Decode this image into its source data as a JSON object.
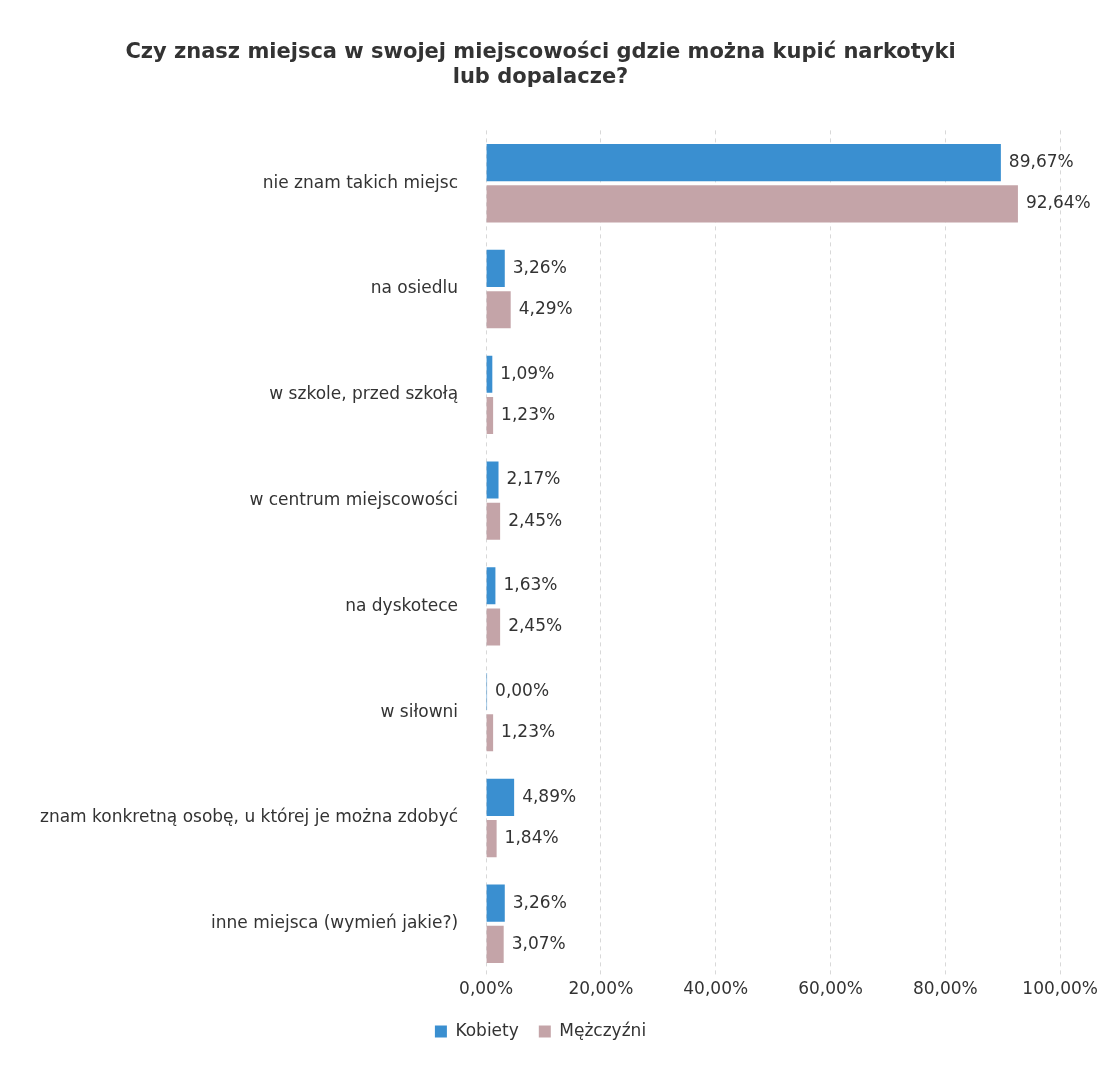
{
  "chart_data": {
    "type": "bar",
    "orientation": "horizontal",
    "title": "Czy znasz miejsca w swojej miejscowości gdzie można kupić narkotyki\nlub dopalacze?",
    "categories": [
      "nie znam takich miejsc",
      "na osiedlu",
      "w szkole, przed szkołą",
      "w centrum miejscowości",
      "na dyskotece",
      "w siłowni",
      "znam konkretną osobę, u której je można zdobyć",
      "inne miejsca (wymień jakie?)"
    ],
    "series": [
      {
        "name": "Kobiety",
        "color": "#3a8fd0",
        "values": [
          89.67,
          3.26,
          1.09,
          2.17,
          1.63,
          0,
          4.89,
          3.26
        ],
        "value_labels": [
          "89,67%",
          "3,26%",
          "1,09%",
          "2,17%",
          "1,63%",
          "0,00%",
          "4,89%",
          "3,26%"
        ]
      },
      {
        "name": "Mężczyźni",
        "color": "#c4a4a8",
        "values": [
          92.64,
          4.29,
          1.23,
          2.45,
          2.45,
          1.23,
          1.84,
          3.07
        ],
        "value_labels": [
          "92,64%",
          "4,29%",
          "1,23%",
          "2,45%",
          "2,45%",
          "1,23%",
          "1,84%",
          "3,07%"
        ]
      }
    ],
    "xlim": [
      0,
      100
    ],
    "xticks": [
      {
        "value": 0,
        "label": "0,00%"
      },
      {
        "value": 20,
        "label": "20,00%"
      },
      {
        "value": 40,
        "label": "40,00%"
      },
      {
        "value": 60,
        "label": "60,00%"
      },
      {
        "value": 80,
        "label": "80,00%"
      },
      {
        "value": 100,
        "label": "100,00%"
      }
    ],
    "grid": "x",
    "legend": "bottom"
  }
}
